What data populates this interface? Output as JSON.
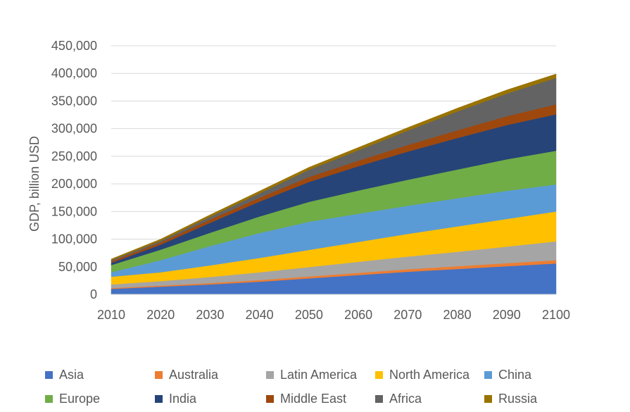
{
  "chart_data": {
    "type": "area",
    "stacked": true,
    "title": "",
    "xlabel": "",
    "ylabel": "GDP, billion USD",
    "x": [
      2010,
      2020,
      2030,
      2040,
      2050,
      2060,
      2070,
      2080,
      2090,
      2100
    ],
    "x_tick_labels": [
      "2010",
      "2020",
      "2030",
      "2040",
      "2050",
      "2060",
      "2070",
      "2080",
      "2090",
      "2100"
    ],
    "ylim": [
      0,
      450000
    ],
    "y_ticks": [
      0,
      50000,
      100000,
      150000,
      200000,
      250000,
      300000,
      350000,
      400000,
      450000
    ],
    "y_tick_labels": [
      "0",
      "50,000",
      "100,000",
      "150,000",
      "200,000",
      "250,000",
      "300,000",
      "350,000",
      "400,000",
      "450,000"
    ],
    "grid": true,
    "legend_position": "bottom",
    "series": [
      {
        "name": "Asia",
        "color": "#4472C4",
        "values": [
          10000,
          14000,
          18000,
          23000,
          29000,
          35000,
          41000,
          46000,
          51000,
          56000
        ]
      },
      {
        "name": "Australia",
        "color": "#ED7D31",
        "values": [
          1500,
          2000,
          2500,
          3000,
          3500,
          4000,
          4500,
          5000,
          5500,
          6000
        ]
      },
      {
        "name": "Latin America",
        "color": "#A5A5A5",
        "values": [
          6500,
          8000,
          11000,
          14000,
          17000,
          20000,
          23000,
          26000,
          30000,
          34000
        ]
      },
      {
        "name": "North America",
        "color": "#FFC000",
        "values": [
          14000,
          16000,
          21000,
          26000,
          31000,
          36000,
          41000,
          46000,
          50000,
          54000
        ]
      },
      {
        "name": "China",
        "color": "#5B9BD5",
        "values": [
          8000,
          22000,
          35000,
          45000,
          51000,
          51000,
          51000,
          51000,
          51000,
          49000
        ]
      },
      {
        "name": "Europe",
        "color": "#70AD47",
        "values": [
          13000,
          19000,
          24000,
          30000,
          36000,
          42000,
          47000,
          52000,
          57000,
          61000
        ]
      },
      {
        "name": "India",
        "color": "#264478",
        "values": [
          4000,
          9000,
          18000,
          27000,
          36000,
          44000,
          51000,
          57000,
          62000,
          66000
        ]
      },
      {
        "name": "Middle East",
        "color": "#9E480E",
        "values": [
          3000,
          4000,
          6000,
          7000,
          9000,
          10000,
          12000,
          14000,
          16000,
          18000
        ]
      },
      {
        "name": "Africa",
        "color": "#636363",
        "values": [
          2000,
          3000,
          5000,
          8000,
          13000,
          19000,
          26000,
          34000,
          41000,
          48000
        ]
      },
      {
        "name": "Russia",
        "color": "#997300",
        "values": [
          2000,
          3000,
          3500,
          4000,
          4500,
          5000,
          5500,
          6000,
          6500,
          7000
        ]
      }
    ]
  }
}
